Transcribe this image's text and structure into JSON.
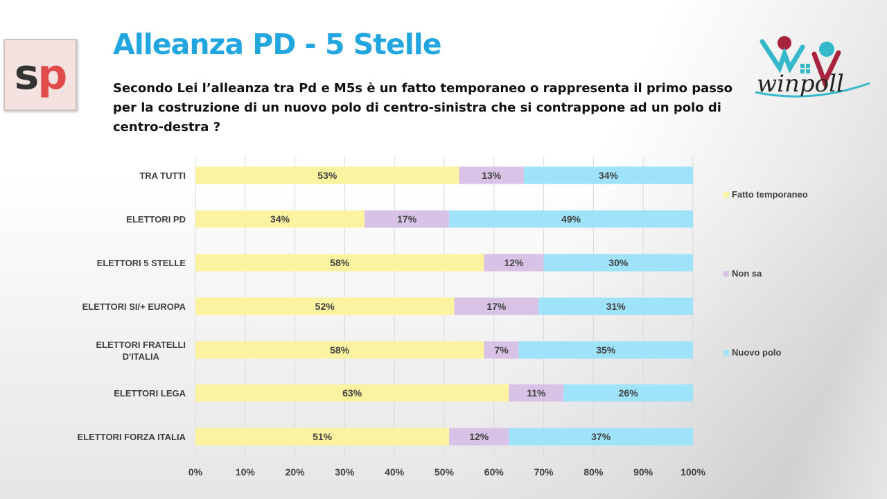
{
  "header": {
    "title": "Alleanza PD - 5 Stelle",
    "question": "Secondo Lei l’alleanza tra Pd e M5s è un fatto temporaneo o rappresenta il primo passo per la costruzione di un nuovo polo di centro-sinistra che si contrappone ad un polo di centro-destra ?",
    "logo_left": {
      "s": "s",
      "p": "p"
    },
    "logo_right": "winpoll"
  },
  "colors": {
    "fatto": "#fbf3a0",
    "nonsa": "#d8c3e6",
    "nuovo": "#9ee3fa",
    "title": "#22a6e0"
  },
  "chart_data": {
    "type": "bar",
    "orientation": "horizontal-stacked-100",
    "categories": [
      "TRA TUTTI",
      "ELETTORI PD",
      "ELETTORI 5 STELLE",
      "ELETTORI SI/+ EUROPA",
      "ELETTORI FRATELLI D'ITALIA",
      "ELETTORI LEGA",
      "ELETTORI FORZA ITALIA"
    ],
    "series": [
      {
        "name": "Fatto temporaneo",
        "values": [
          53,
          34,
          58,
          52,
          58,
          63,
          51
        ]
      },
      {
        "name": "Non sa",
        "values": [
          13,
          17,
          12,
          17,
          7,
          11,
          12
        ]
      },
      {
        "name": "Nuovo polo",
        "values": [
          34,
          49,
          30,
          31,
          35,
          26,
          37
        ]
      }
    ],
    "value_labels": [
      [
        "53%",
        "34%",
        "58%",
        "52%",
        "58%",
        "63%",
        "51%"
      ],
      [
        "13%",
        "17%",
        "12%",
        "17%",
        "7%",
        "11%",
        "12%"
      ],
      [
        "34%",
        "49%",
        "30%",
        "31%",
        "35%",
        "26%",
        "37%"
      ]
    ],
    "xticks": [
      "0%",
      "10%",
      "20%",
      "30%",
      "40%",
      "50%",
      "60%",
      "70%",
      "80%",
      "90%",
      "100%"
    ],
    "xlim": [
      0,
      100
    ],
    "grid": true,
    "legend": "right"
  }
}
